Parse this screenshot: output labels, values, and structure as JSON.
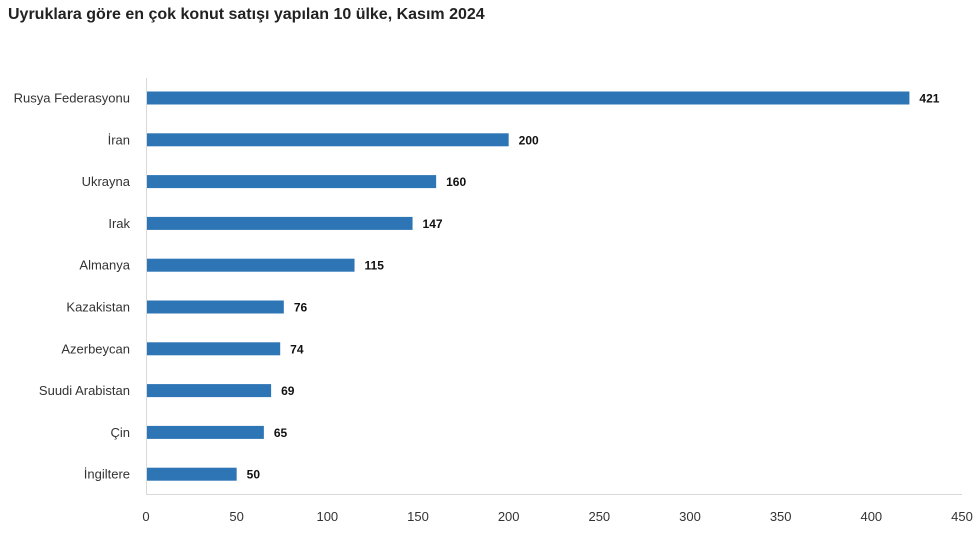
{
  "chart_data": {
    "type": "bar",
    "orientation": "horizontal",
    "title": "Uyruklara göre en çok konut satışı yapılan 10 ülke, Kasım 2024",
    "categories": [
      "Rusya Federasyonu",
      "İran",
      "Ukrayna",
      "Irak",
      "Almanya",
      "Kazakistan",
      "Azerbeycan",
      "Suudi Arabistan",
      "Çin",
      "İngiltere"
    ],
    "values": [
      421,
      200,
      160,
      147,
      115,
      76,
      74,
      69,
      65,
      50
    ],
    "xlim": [
      0,
      450
    ],
    "xticks": [
      "0",
      "50",
      "100",
      "150",
      "200",
      "250",
      "300",
      "350",
      "400",
      "450"
    ],
    "grid": false,
    "legend": "none",
    "bar_color": "#2e75b6"
  }
}
